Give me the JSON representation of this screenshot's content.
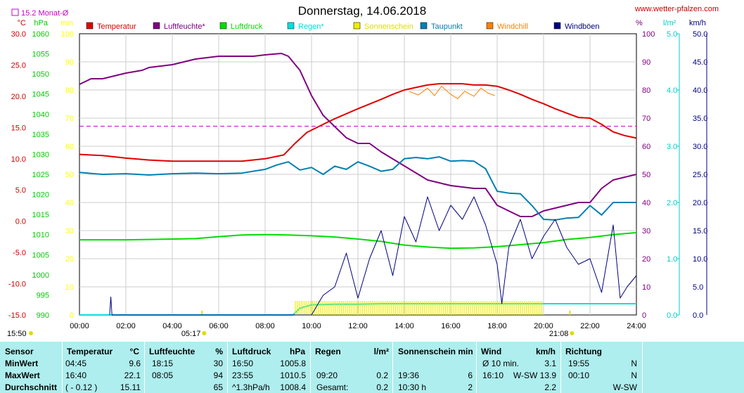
{
  "header": {
    "title": "Donnerstag, 14.06.2018",
    "site": "www.wetter-pfalzen.com",
    "monthly_avg_label": "15.2 Monat-Ø"
  },
  "axes": {
    "left_units": {
      "temp": "°C",
      "pressure": "hPa",
      "minutes": "min"
    },
    "right_units": {
      "percent": "%",
      "rain": "l/m²",
      "wind": "km/h"
    },
    "temp_ticks": [
      "30.0",
      "25.0",
      "20.0",
      "15.0",
      "10.0",
      "5.0",
      "0.0",
      "-5.0",
      "-10.0",
      "-15.0"
    ],
    "pressure_ticks": [
      "1060",
      "1055",
      "1050",
      "1045",
      "1040",
      "1035",
      "1030",
      "1025",
      "1020",
      "1015",
      "1010",
      "1005",
      "1000",
      "995",
      "990"
    ],
    "minutes_ticks": [
      "100",
      "90",
      "80",
      "70",
      "60",
      "50",
      "40",
      "30",
      "20",
      "10",
      "0"
    ],
    "percent_ticks": [
      "100",
      "90",
      "80",
      "70",
      "60",
      "50",
      "40",
      "30",
      "20",
      "10",
      "0"
    ],
    "rain_ticks": [
      "5.0",
      "4.0",
      "3.0",
      "2.0",
      "1.0",
      "0.0"
    ],
    "wind_ticks": [
      "50.0",
      "45.0",
      "40.0",
      "35.0",
      "30.0",
      "25.0",
      "20.0",
      "15.0",
      "10.0",
      "5.0",
      "0.0"
    ],
    "time_ticks": [
      "00:00",
      "02:00",
      "04:00",
      "06:00",
      "08:00",
      "10:00",
      "12:00",
      "14:00",
      "16:00",
      "18:00",
      "20:00",
      "22:00",
      "24:00"
    ],
    "sunrise": "05:17",
    "sunset": "21:08",
    "left_corner_time": "15:50"
  },
  "legend": [
    {
      "name": "Temperatur",
      "color": "#e00000"
    },
    {
      "name": "Luftfeuchte*",
      "color": "#800080"
    },
    {
      "name": "Luftdruck",
      "color": "#00dd00"
    },
    {
      "name": "Regen*",
      "color": "#00e0e0"
    },
    {
      "name": "Sonnenschein",
      "color": "#eeee00"
    },
    {
      "name": "Taupunkt",
      "color": "#0080b0"
    },
    {
      "name": "Windchill",
      "color": "#ff8000"
    },
    {
      "name": "Windböen",
      "color": "#000080"
    }
  ],
  "colors": {
    "temp_axis": "#cc0000",
    "pressure_axis": "#00cc00",
    "minutes_axis": "#ffff00",
    "percent_axis": "#800080",
    "rain_axis": "#00cccc",
    "wind_axis": "#000080",
    "monthly_avg": "#cc00cc"
  },
  "chart_data": {
    "type": "line",
    "x_unit": "hours",
    "xlim": [
      0,
      24
    ],
    "monthly_avg_temp": 15.2,
    "series": [
      {
        "name": "Temperatur",
        "axis": "temp",
        "ylim": [
          -15,
          30
        ],
        "x": [
          0,
          1,
          2,
          3,
          4,
          5,
          6,
          7,
          8,
          8.8,
          9.3,
          9.8,
          10.5,
          11,
          12,
          13,
          13.5,
          14,
          14.5,
          15,
          15.5,
          16,
          16.5,
          17,
          17.5,
          18,
          18.5,
          19,
          19.5,
          20,
          20.5,
          21,
          21.5,
          22,
          22.5,
          23,
          23.5,
          24
        ],
        "y": [
          10.7,
          10.5,
          10.1,
          9.8,
          9.6,
          9.6,
          9.6,
          9.6,
          10.0,
          10.6,
          12.5,
          14.2,
          15.5,
          16.4,
          18.0,
          19.5,
          20.3,
          21.0,
          21.4,
          21.8,
          22.0,
          22.0,
          22.0,
          21.8,
          21.8,
          21.6,
          21.0,
          20.3,
          19.5,
          18.8,
          18.0,
          17.3,
          16.6,
          16.5,
          15.5,
          14.3,
          13.7,
          13.3
        ]
      },
      {
        "name": "Luftfeuchte*",
        "axis": "percent",
        "ylim": [
          0,
          100
        ],
        "x": [
          0,
          0.5,
          1,
          2,
          2.7,
          3,
          4,
          5,
          6,
          7,
          7.5,
          8,
          8.7,
          9,
          9.5,
          10,
          10.5,
          11,
          11.5,
          12,
          12.5,
          13,
          14,
          15,
          16,
          17,
          17.5,
          18,
          18.5,
          19,
          19.5,
          20,
          21,
          21.5,
          22,
          22.5,
          23,
          23.5,
          24
        ],
        "y": [
          82,
          84,
          84,
          86,
          87,
          88,
          89,
          91,
          92,
          92,
          92,
          92.5,
          93,
          92,
          87,
          78,
          71,
          67,
          63,
          61,
          61,
          58,
          53,
          48,
          46,
          45,
          45,
          39,
          37,
          35,
          35,
          37,
          39,
          40,
          40,
          45,
          48,
          49,
          50
        ]
      },
      {
        "name": "Luftdruck",
        "axis": "pressure",
        "ylim": [
          990,
          1060
        ],
        "x": [
          0,
          1,
          2,
          3,
          4,
          5,
          6,
          7,
          8,
          9,
          10,
          11,
          12,
          13,
          14,
          15,
          16,
          17,
          18,
          19,
          20,
          21,
          22,
          23,
          24
        ],
        "y": [
          1008.7,
          1008.7,
          1008.7,
          1008.8,
          1008.9,
          1009.0,
          1009.5,
          1009.9,
          1010.0,
          1009.9,
          1009.7,
          1009.4,
          1008.9,
          1008.3,
          1007.4,
          1006.9,
          1006.6,
          1006.7,
          1007.0,
          1007.5,
          1008.0,
          1008.8,
          1009.3,
          1010.0,
          1010.5
        ]
      },
      {
        "name": "Regen*",
        "axis": "rain",
        "ylim": [
          0,
          5
        ],
        "x": [
          0,
          9.2,
          9.5,
          10,
          11,
          12,
          13,
          14,
          15,
          16,
          17,
          18,
          19,
          20,
          21,
          22,
          23,
          24
        ],
        "y": [
          0,
          0,
          0.12,
          0.18,
          0.19,
          0.19,
          0.2,
          0.2,
          0.2,
          0.2,
          0.2,
          0.2,
          0.2,
          0.2,
          0.2,
          0.2,
          0.2,
          0.2
        ]
      },
      {
        "name": "Sonnenschein",
        "axis": "minutes",
        "ylim": [
          0,
          100
        ],
        "x": [
          9.3,
          20.0
        ],
        "y": [
          5,
          5
        ]
      },
      {
        "name": "Taupunkt",
        "axis": "temp",
        "ylim": [
          -15,
          30
        ],
        "x": [
          0,
          1,
          2,
          3,
          4,
          5,
          6,
          7,
          8,
          8.5,
          9,
          9.5,
          10,
          10.5,
          11,
          11.5,
          12,
          12.5,
          13,
          13.5,
          14,
          14.5,
          15,
          15.5,
          16,
          16.5,
          17,
          17.5,
          18,
          18.5,
          19,
          19.5,
          20,
          20.5,
          21,
          21.5,
          22,
          22.5,
          23,
          23.5,
          24
        ],
        "y": [
          7.8,
          7.5,
          7.6,
          7.4,
          7.6,
          7.7,
          7.6,
          7.7,
          8.3,
          9.0,
          9.5,
          8.2,
          8.6,
          7.5,
          8.8,
          8.3,
          9.5,
          8.8,
          8.0,
          8.3,
          10.0,
          10.2,
          10.0,
          10.3,
          9.6,
          9.7,
          9.6,
          8.4,
          4.8,
          4.5,
          4.4,
          2.5,
          0.3,
          0.2,
          0.5,
          0.6,
          2.5,
          1.0,
          3.0,
          3.0,
          3.0
        ]
      },
      {
        "name": "Windchill",
        "axis": "temp",
        "ylim": [
          -15,
          30
        ],
        "x": [
          14.2,
          14.6,
          15,
          15.3,
          15.6,
          16,
          16.3,
          16.6,
          17,
          17.3,
          17.6,
          17.9
        ],
        "y": [
          20.8,
          20.2,
          21.3,
          20.1,
          21.6,
          20.3,
          19.6,
          20.8,
          20.0,
          21.3,
          20.5,
          20.1
        ]
      },
      {
        "name": "Windböen",
        "axis": "wind",
        "ylim": [
          0,
          50
        ],
        "x": [
          1.3,
          1.35,
          1.4,
          10,
          10.5,
          11,
          11.5,
          12,
          12.5,
          13,
          13.5,
          14,
          14.5,
          15,
          15.5,
          16,
          16.5,
          17,
          17.5,
          18,
          18.2,
          18.5,
          19,
          19.5,
          20,
          20.5,
          21,
          21.5,
          22,
          22.5,
          23,
          23.3,
          23.6,
          24
        ],
        "y": [
          0,
          3.2,
          0,
          0,
          3.5,
          5,
          11,
          3,
          10,
          15,
          7,
          17.5,
          13,
          21,
          15,
          19.5,
          17,
          21,
          16,
          9,
          2,
          12,
          17,
          10,
          14,
          17,
          12,
          9,
          10,
          4,
          16,
          3,
          5,
          7
        ]
      }
    ]
  },
  "stats": {
    "headers": {
      "sensor": "Sensor",
      "temp": "Temperatur",
      "temp_unit": "°C",
      "hum": "Luftfeuchte",
      "hum_unit": "%",
      "press": "Luftdruck",
      "press_unit": "hPa",
      "rain": "Regen",
      "rain_unit": "l/m²",
      "sun": "Sonnenschein min",
      "wind": "Wind",
      "wind_unit": "km/h",
      "dir": "Richtung"
    },
    "rows": [
      {
        "label": "MinWert",
        "temp_t": "04:45",
        "temp_v": "9.6",
        "hum_t": "18:15",
        "hum_v": "30",
        "press_t": "16:50",
        "press_v": "1005.8",
        "rain_t": "",
        "rain_v": "",
        "sun_t": "",
        "sun_v": "",
        "wind_t": "Ø 10 min.",
        "wind_v": "3.1",
        "dir_t": "19:55",
        "dir_v": "N"
      },
      {
        "label": "MaxWert",
        "temp_t": "16:40",
        "temp_v": "22.1",
        "hum_t": "08:05",
        "hum_v": "94",
        "press_t": "23:55",
        "press_v": "1010.5",
        "rain_t": "09:20",
        "rain_v": "0.2",
        "sun_t": "19:36",
        "sun_v": "6",
        "wind_t": "16:10",
        "wind_v": "W-SW 13.9",
        "dir_t": "00:10",
        "dir_v": "N"
      },
      {
        "label": "Durchschnitt",
        "temp_t": "( - 0.12 )",
        "temp_v": "15.11",
        "hum_t": "",
        "hum_v": "65",
        "press_t": "^1.3hPa/h",
        "press_v": "1008.4",
        "rain_t": "Gesamt:",
        "rain_v": "0.2",
        "sun_t": "10:30 h",
        "sun_v": "2",
        "wind_t": "",
        "wind_v": "2.2",
        "dir_t": "",
        "dir_v": "W-SW"
      }
    ]
  }
}
